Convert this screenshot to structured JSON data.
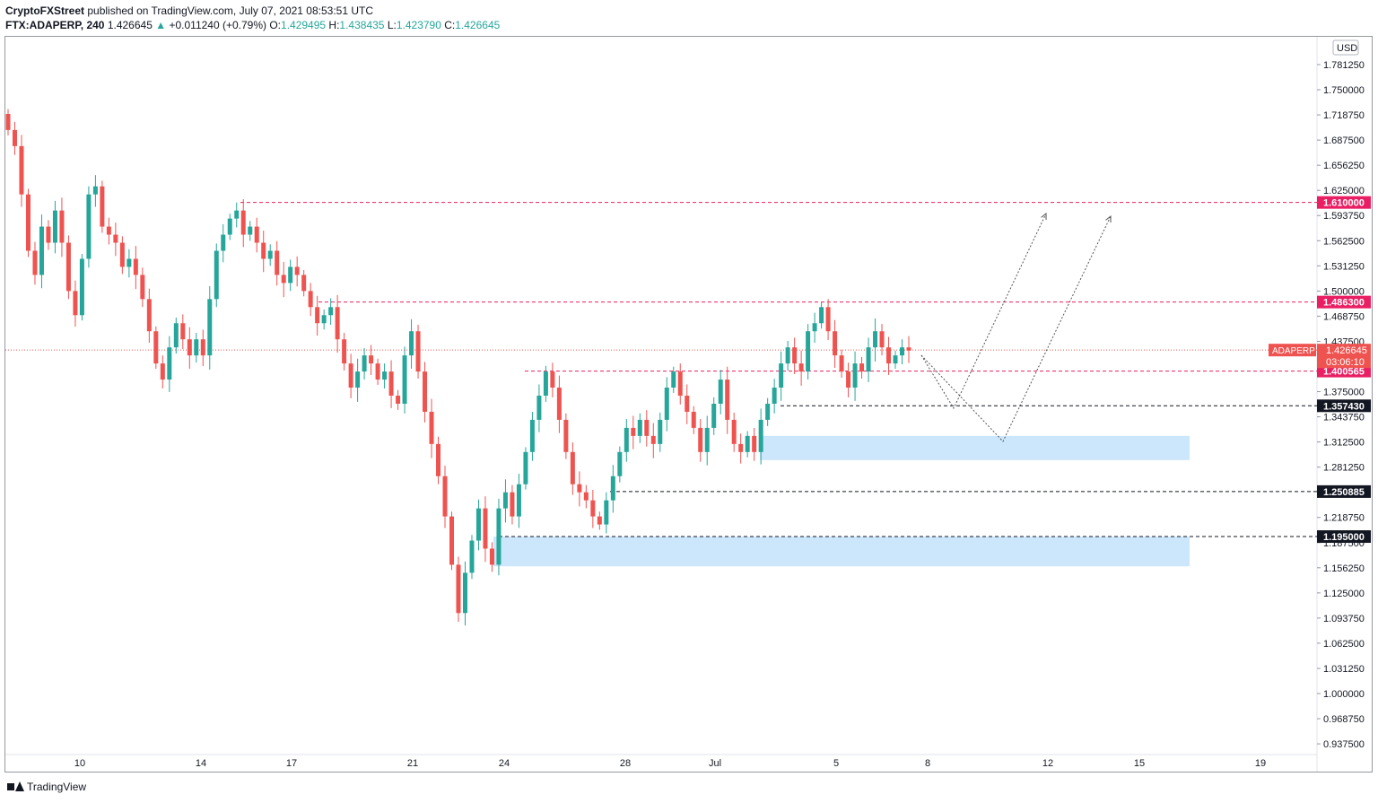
{
  "header": {
    "author": "CryptoFXStreet",
    "published": "published on TradingView.com, July 07, 2021 08:53:51 UTC",
    "symbol": "FTX:ADAPERP, 240",
    "last": "1.426645",
    "change": "+0.011240 (+0.79%)",
    "open_label": "O:",
    "open": "1.429495",
    "high_label": "H:",
    "high": "1.438435",
    "low_label": "L:",
    "low": "1.423790",
    "close_label": "C:",
    "close": "1.426645"
  },
  "footer": {
    "brand": "TradingView"
  },
  "colors": {
    "up": "#26a69a",
    "down": "#ef5350",
    "level_red": "#e91e63",
    "zone": "#bbdefb",
    "dark": "#131722"
  },
  "chart_data": {
    "type": "candlestick",
    "title": "",
    "currency": "USD",
    "ylim": [
      0.925,
      1.8125
    ],
    "y_ticks": [
      "1.781250",
      "1.750000",
      "1.718750",
      "1.687500",
      "1.656250",
      "1.625000",
      "1.593750",
      "1.562500",
      "1.531250",
      "1.500000",
      "1.468750",
      "1.437500",
      "1.375000",
      "1.343750",
      "1.312500",
      "1.281250",
      "1.218750",
      "1.187500",
      "1.156250",
      "1.125000",
      "1.093750",
      "1.062500",
      "1.031250",
      "1.000000",
      "0.968750",
      "0.937500"
    ],
    "x_ticks": [
      "10",
      "14",
      "17",
      "21",
      "24",
      "28",
      "Jul",
      "5",
      "8",
      "12",
      "15",
      "19"
    ],
    "close_path": [
      1.7,
      1.68,
      1.62,
      1.55,
      1.52,
      1.58,
      1.56,
      1.6,
      1.56,
      1.5,
      1.47,
      1.54,
      1.62,
      1.63,
      1.58,
      1.57,
      1.56,
      1.53,
      1.54,
      1.52,
      1.49,
      1.45,
      1.41,
      1.39,
      1.43,
      1.46,
      1.44,
      1.42,
      1.44,
      1.42,
      1.49,
      1.55,
      1.57,
      1.59,
      1.6,
      1.57,
      1.58,
      1.56,
      1.54,
      1.55,
      1.52,
      1.51,
      1.53,
      1.52,
      1.5,
      1.48,
      1.46,
      1.47,
      1.48,
      1.44,
      1.41,
      1.38,
      1.4,
      1.42,
      1.41,
      1.39,
      1.4,
      1.37,
      1.36,
      1.42,
      1.45,
      1.4,
      1.35,
      1.31,
      1.27,
      1.22,
      1.16,
      1.1,
      1.15,
      1.19,
      1.23,
      1.18,
      1.16,
      1.23,
      1.25,
      1.22,
      1.26,
      1.3,
      1.34,
      1.37,
      1.4,
      1.38,
      1.34,
      1.3,
      1.26,
      1.25,
      1.24,
      1.22,
      1.21,
      1.24,
      1.27,
      1.3,
      1.33,
      1.32,
      1.34,
      1.32,
      1.31,
      1.34,
      1.38,
      1.4,
      1.37,
      1.35,
      1.33,
      1.3,
      1.33,
      1.36,
      1.39,
      1.34,
      1.31,
      1.3,
      1.32,
      1.3,
      1.34,
      1.36,
      1.38,
      1.41,
      1.43,
      1.41,
      1.4,
      1.45,
      1.46,
      1.48,
      1.45,
      1.42,
      1.4,
      1.38,
      1.41,
      1.4,
      1.43,
      1.45,
      1.43,
      1.41,
      1.42,
      1.43,
      1.426
    ],
    "levels": [
      {
        "label": "1.610000",
        "value": 1.61,
        "color": "#e91e63"
      },
      {
        "label": "1.486300",
        "value": 1.4863,
        "color": "#e91e63"
      },
      {
        "label": "1.400565",
        "value": 1.400565,
        "color": "#e91e63"
      },
      {
        "label": "1.357430",
        "value": 1.35743,
        "color": "#131722"
      },
      {
        "label": "1.250885",
        "value": 1.250885,
        "color": "#131722"
      },
      {
        "label": "1.195000",
        "value": 1.195,
        "color": "#131722"
      }
    ],
    "zones": [
      {
        "from": 1.29,
        "to": 1.32
      },
      {
        "from": 1.158,
        "to": 1.195
      }
    ],
    "last_price": {
      "symbol": "ADAPERP",
      "value": 1.426645,
      "label": "1.426645",
      "countdown": "03:06:10"
    }
  }
}
